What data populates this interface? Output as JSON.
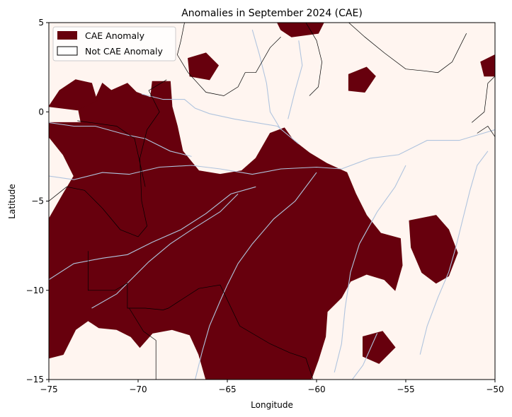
{
  "chart_data": {
    "type": "heatmap",
    "title": "Anomalies in September 2024 (CAE)",
    "xlabel": "Longitude",
    "ylabel": "Latitude",
    "xlim": [
      -75,
      -50
    ],
    "ylim": [
      -15,
      5
    ],
    "xticks": [
      -75,
      -70,
      -65,
      -60,
      -55,
      -50
    ],
    "yticks": [
      -15,
      -10,
      -5,
      0,
      5
    ],
    "xtick_labels": [
      "−75",
      "−70",
      "−65",
      "−60",
      "−55",
      "−50"
    ],
    "ytick_labels": [
      "−15",
      "−10",
      "−5",
      "0",
      "5"
    ],
    "grid": false,
    "legend_position": "upper-left",
    "legend": [
      {
        "label": "CAE Anomaly",
        "color": "#67000d"
      },
      {
        "label": "Not CAE Anomaly",
        "color": "#ffffff"
      }
    ],
    "background_color": "#fff5f0",
    "anomaly_color": "#67000d",
    "river_color": "#b0c4de",
    "border_color": "#000000",
    "anomaly_regions": [
      {
        "name": "main",
        "points": [
          [
            -75,
            -6
          ],
          [
            -74.2,
            -4.6
          ],
          [
            -73.6,
            -3.6
          ],
          [
            -74.2,
            -2.4
          ],
          [
            -75,
            -1.4
          ],
          [
            -75,
            -0.6
          ],
          [
            -73.2,
            -0.6
          ],
          [
            -73.4,
            0.4
          ],
          [
            -72.4,
            0.7
          ],
          [
            -72,
            1.6
          ],
          [
            -71.5,
            1.2
          ],
          [
            -70.6,
            1.6
          ],
          [
            -70.1,
            1.1
          ],
          [
            -69.3,
            0.8
          ],
          [
            -69.2,
            1.7
          ],
          [
            -68.2,
            1.7
          ],
          [
            -68.1,
            0.3
          ],
          [
            -67.8,
            -0.8
          ],
          [
            -67.5,
            -2.2
          ],
          [
            -66.6,
            -3.3
          ],
          [
            -65.4,
            -3.5
          ],
          [
            -64.2,
            -3.3
          ],
          [
            -63.4,
            -2.6
          ],
          [
            -62.6,
            -1.2
          ],
          [
            -61.8,
            -0.9
          ],
          [
            -61.3,
            -1.6
          ],
          [
            -60.4,
            -2.3
          ],
          [
            -59.4,
            -2.9
          ],
          [
            -58.3,
            -3.4
          ],
          [
            -57.8,
            -4.6
          ],
          [
            -57.2,
            -5.8
          ],
          [
            -56.4,
            -6.8
          ],
          [
            -55.3,
            -7.1
          ],
          [
            -55.2,
            -8.6
          ],
          [
            -55.6,
            -10
          ],
          [
            -56.2,
            -9.4
          ],
          [
            -57.2,
            -9.1
          ],
          [
            -58.1,
            -9.5
          ],
          [
            -58.6,
            -10.4
          ],
          [
            -59.4,
            -11.2
          ],
          [
            -59.5,
            -12.6
          ],
          [
            -59.9,
            -13.9
          ],
          [
            -60.3,
            -15
          ],
          [
            -66.2,
            -15
          ],
          [
            -66.6,
            -13.6
          ],
          [
            -67.1,
            -12.5
          ],
          [
            -68.1,
            -12.2
          ],
          [
            -69.2,
            -12.4
          ],
          [
            -69.9,
            -13.2
          ],
          [
            -70.4,
            -12.6
          ],
          [
            -71.2,
            -12.2
          ],
          [
            -72.2,
            -12.1
          ],
          [
            -72.8,
            -11.7
          ],
          [
            -73.5,
            -12.2
          ],
          [
            -74.2,
            -13.6
          ],
          [
            -75,
            -13.8
          ]
        ]
      },
      {
        "name": "north-strip",
        "points": [
          [
            -75,
            0.3
          ],
          [
            -74.4,
            1.2
          ],
          [
            -73.5,
            1.8
          ],
          [
            -72.6,
            1.6
          ],
          [
            -72.3,
            0.6
          ],
          [
            -73.4,
            0.1
          ]
        ]
      },
      {
        "name": "east-blob",
        "points": [
          [
            -54.8,
            -6.1
          ],
          [
            -53.3,
            -5.8
          ],
          [
            -52.6,
            -6.6
          ],
          [
            -52.1,
            -7.9
          ],
          [
            -52.6,
            -9.2
          ],
          [
            -53.3,
            -9.6
          ],
          [
            -54.1,
            -9.0
          ],
          [
            -54.7,
            -7.6
          ]
        ]
      },
      {
        "name": "north-east-patch",
        "points": [
          [
            -58.2,
            2.1
          ],
          [
            -57.2,
            2.5
          ],
          [
            -56.7,
            2.0
          ],
          [
            -57.3,
            1.1
          ],
          [
            -58.2,
            1.2
          ]
        ]
      },
      {
        "name": "mid-north-patch",
        "points": [
          [
            -67.2,
            3.0
          ],
          [
            -66.2,
            3.3
          ],
          [
            -65.5,
            2.6
          ],
          [
            -66.0,
            1.8
          ],
          [
            -67.1,
            2.0
          ]
        ]
      },
      {
        "name": "top-patch",
        "points": [
          [
            -62.2,
            5.0
          ],
          [
            -59.6,
            5.0
          ],
          [
            -59.9,
            4.4
          ],
          [
            -61.4,
            4.2
          ],
          [
            -62.0,
            4.6
          ]
        ]
      },
      {
        "name": "south-east-patch",
        "points": [
          [
            -57.4,
            -12.6
          ],
          [
            -56.3,
            -12.3
          ],
          [
            -55.6,
            -13.2
          ],
          [
            -56.5,
            -14.1
          ],
          [
            -57.4,
            -13.7
          ]
        ]
      },
      {
        "name": "far-east-north",
        "points": [
          [
            -50.8,
            2.8
          ],
          [
            -50.0,
            3.2
          ],
          [
            -50.0,
            2.0
          ],
          [
            -50.6,
            2.0
          ]
        ]
      }
    ],
    "border_lines": [
      [
        [
          -75,
          -5.0
        ],
        [
          -74.0,
          -4.2
        ],
        [
          -73.0,
          -4.4
        ],
        [
          -72.0,
          -5.4
        ],
        [
          -71.0,
          -6.6
        ],
        [
          -70.0,
          -7.0
        ],
        [
          -69.5,
          -6.4
        ],
        [
          -69.8,
          -5.0
        ],
        [
          -69.9,
          -2.6
        ],
        [
          -69.5,
          -1.0
        ],
        [
          -68.8,
          0.0
        ],
        [
          -69.4,
          1.2
        ],
        [
          -68.4,
          1.8
        ]
      ],
      [
        [
          -73.4,
          -0.5
        ],
        [
          -71.2,
          -0.8
        ],
        [
          -70.2,
          -1.5
        ],
        [
          -69.6,
          -4.2
        ]
      ],
      [
        [
          -72.8,
          -7.8
        ],
        [
          -72.8,
          -10.0
        ],
        [
          -71.3,
          -10.0
        ],
        [
          -70.6,
          -9.6
        ],
        [
          -70.6,
          -11.0
        ],
        [
          -69.6,
          -11.0
        ],
        [
          -68.6,
          -11.1
        ],
        [
          -68.3,
          -11.0
        ],
        [
          -66.6,
          -9.9
        ],
        [
          -65.4,
          -9.7
        ],
        [
          -64.3,
          -12.0
        ],
        [
          -62.6,
          -13.0
        ],
        [
          -61.5,
          -13.5
        ],
        [
          -60.6,
          -13.8
        ],
        [
          -60.2,
          -15.0
        ]
      ],
      [
        [
          -70.5,
          -11.0
        ],
        [
          -69.7,
          -12.3
        ],
        [
          -69.0,
          -12.8
        ],
        [
          -69.0,
          -15.0
        ]
      ],
      [
        [
          -58.2,
          5.0
        ],
        [
          -57.3,
          4.2
        ],
        [
          -56.2,
          3.3
        ],
        [
          -55.0,
          2.4
        ],
        [
          -54.0,
          2.3
        ],
        [
          -53.2,
          2.2
        ],
        [
          -52.4,
          2.8
        ],
        [
          -51.8,
          4.0
        ],
        [
          -51.6,
          4.4
        ]
      ],
      [
        [
          -60.6,
          5.0
        ],
        [
          -60.0,
          4.0
        ],
        [
          -59.7,
          2.8
        ],
        [
          -59.9,
          1.4
        ],
        [
          -60.4,
          0.9
        ]
      ],
      [
        [
          -67.4,
          5.0
        ],
        [
          -67.6,
          4.0
        ],
        [
          -67.8,
          3.2
        ],
        [
          -67.2,
          2.2
        ],
        [
          -66.2,
          1.1
        ],
        [
          -65.2,
          0.9
        ],
        [
          -64.4,
          1.4
        ],
        [
          -64.0,
          2.2
        ],
        [
          -63.4,
          2.2
        ],
        [
          -62.6,
          3.6
        ],
        [
          -62.0,
          4.2
        ]
      ],
      [
        [
          -51.3,
          -0.6
        ],
        [
          -50.6,
          0.0
        ],
        [
          -50.4,
          1.6
        ],
        [
          -50.0,
          2.0
        ]
      ],
      [
        [
          -51.0,
          -1.2
        ],
        [
          -50.4,
          -0.8
        ],
        [
          -50.0,
          -1.4
        ]
      ]
    ],
    "river_lines": [
      [
        [
          -75,
          -3.6
        ],
        [
          -73.6,
          -3.8
        ],
        [
          -72.0,
          -3.4
        ],
        [
          -70.5,
          -3.5
        ],
        [
          -68.8,
          -3.1
        ],
        [
          -67.0,
          -3.0
        ],
        [
          -65.4,
          -3.2
        ],
        [
          -63.6,
          -3.5
        ],
        [
          -62.0,
          -3.2
        ],
        [
          -60.0,
          -3.1
        ],
        [
          -58.6,
          -3.2
        ],
        [
          -57.0,
          -2.6
        ],
        [
          -55.4,
          -2.4
        ],
        [
          -53.8,
          -1.6
        ],
        [
          -52.0,
          -1.6
        ],
        [
          -50.0,
          -1.0
        ]
      ],
      [
        [
          -75,
          -0.6
        ],
        [
          -73.6,
          -0.8
        ],
        [
          -72.4,
          -0.8
        ],
        [
          -70.6,
          -1.3
        ],
        [
          -69.6,
          -1.5
        ],
        [
          -68.2,
          -2.2
        ],
        [
          -67.0,
          -2.5
        ]
      ],
      [
        [
          -69.8,
          1.0
        ],
        [
          -68.6,
          0.7
        ],
        [
          -67.4,
          0.7
        ],
        [
          -66.8,
          0.2
        ],
        [
          -66.0,
          -0.1
        ],
        [
          -64.6,
          -0.4
        ],
        [
          -63.4,
          -0.6
        ],
        [
          -62.2,
          -0.8
        ],
        [
          -61.0,
          -1.8
        ]
      ],
      [
        [
          -65.0,
          -9.7
        ],
        [
          -64.4,
          -8.5
        ],
        [
          -63.6,
          -7.4
        ],
        [
          -62.4,
          -6.0
        ],
        [
          -61.2,
          -5.0
        ],
        [
          -60.0,
          -3.4
        ]
      ],
      [
        [
          -75,
          -9.4
        ],
        [
          -73.6,
          -8.5
        ],
        [
          -72.0,
          -8.2
        ],
        [
          -70.6,
          -8.0
        ],
        [
          -69.2,
          -7.3
        ],
        [
          -67.6,
          -6.6
        ],
        [
          -66.2,
          -5.7
        ],
        [
          -64.8,
          -4.6
        ],
        [
          -63.4,
          -4.2
        ]
      ],
      [
        [
          -72.6,
          -11.0
        ],
        [
          -71.2,
          -10.2
        ],
        [
          -70.4,
          -9.4
        ],
        [
          -69.4,
          -8.4
        ],
        [
          -68.2,
          -7.4
        ],
        [
          -67.0,
          -6.6
        ],
        [
          -65.4,
          -5.6
        ],
        [
          -64.4,
          -4.6
        ]
      ],
      [
        [
          -59.0,
          -14.6
        ],
        [
          -58.6,
          -13.0
        ],
        [
          -58.4,
          -11.0
        ],
        [
          -58.1,
          -9.0
        ],
        [
          -57.6,
          -7.4
        ],
        [
          -56.6,
          -5.6
        ],
        [
          -55.6,
          -4.2
        ],
        [
          -55.0,
          -3.0
        ]
      ],
      [
        [
          -54.2,
          -13.6
        ],
        [
          -53.8,
          -12.0
        ],
        [
          -53.2,
          -10.4
        ],
        [
          -52.6,
          -9.0
        ],
        [
          -52.2,
          -7.6
        ],
        [
          -51.8,
          -6.0
        ],
        [
          -51.4,
          -4.4
        ],
        [
          -51.0,
          -3.0
        ],
        [
          -50.4,
          -2.2
        ]
      ],
      [
        [
          -66.8,
          -15.0
        ],
        [
          -66.4,
          -13.4
        ],
        [
          -66.0,
          -12.0
        ],
        [
          -65.4,
          -10.6
        ],
        [
          -65.0,
          -9.7
        ]
      ],
      [
        [
          -58.0,
          -15.0
        ],
        [
          -57.4,
          -14.2
        ],
        [
          -56.6,
          -12.4
        ]
      ],
      [
        [
          -63.6,
          4.6
        ],
        [
          -63.2,
          3.2
        ],
        [
          -62.8,
          1.6
        ],
        [
          -62.6,
          0.0
        ],
        [
          -62.0,
          -1.0
        ]
      ],
      [
        [
          -61.0,
          4.0
        ],
        [
          -60.8,
          2.6
        ],
        [
          -61.2,
          1.2
        ],
        [
          -61.6,
          -0.4
        ]
      ]
    ]
  }
}
